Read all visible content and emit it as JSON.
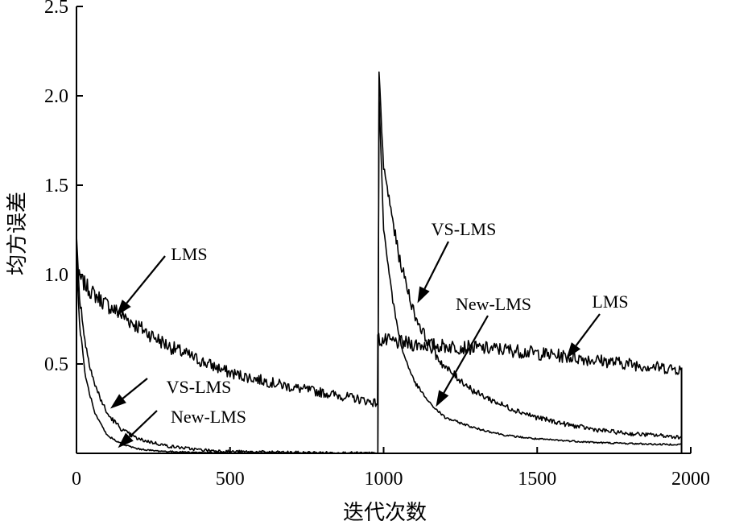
{
  "chart_data": {
    "type": "line",
    "title": "",
    "xlabel": "迭代次数",
    "ylabel": "均方误差",
    "xlim": [
      0,
      2000
    ],
    "ylim": [
      0,
      2.5
    ],
    "x_ticks": [
      0,
      500,
      1000,
      1500,
      2000
    ],
    "x_tick_labels": [
      "0",
      "500",
      "1000",
      "1500",
      "2000"
    ],
    "y_ticks": [
      0.5,
      1.0,
      1.5,
      2.0,
      2.5
    ],
    "y_tick_labels": [
      "0.5",
      "1.0",
      "1.5",
      "2.0",
      "2.5"
    ],
    "grid": false,
    "legend": "none",
    "color": "#000000",
    "series": [
      {
        "key": "LMS",
        "x": [
          0,
          50,
          100,
          150,
          200,
          300,
          400,
          500,
          600,
          700,
          800,
          900,
          980,
          981,
          1000,
          1100,
          1200,
          1300,
          1400,
          1500,
          1600,
          1700,
          1800,
          1900,
          1970
        ],
        "y": [
          1.0,
          0.9,
          0.83,
          0.77,
          0.71,
          0.6,
          0.52,
          0.45,
          0.41,
          0.37,
          0.34,
          0.31,
          0.28,
          0.64,
          0.63,
          0.61,
          0.6,
          0.59,
          0.58,
          0.56,
          0.54,
          0.52,
          0.5,
          0.48,
          0.47
        ]
      },
      {
        "key": "VS-LMS",
        "x": [
          0,
          10,
          30,
          60,
          100,
          150,
          200,
          300,
          400,
          500,
          700,
          980,
          981,
          985,
          1000,
          1050,
          1100,
          1150,
          1200,
          1300,
          1400,
          1500,
          1600,
          1700,
          1800,
          1900,
          1970
        ],
        "y": [
          1.2,
          0.88,
          0.6,
          0.38,
          0.22,
          0.13,
          0.08,
          0.04,
          0.02,
          0.01,
          0.005,
          0.0,
          0.0,
          2.12,
          1.6,
          1.1,
          0.78,
          0.6,
          0.48,
          0.34,
          0.26,
          0.2,
          0.16,
          0.13,
          0.11,
          0.1,
          0.09
        ]
      },
      {
        "key": "New-LMS",
        "x": [
          0,
          10,
          30,
          60,
          100,
          150,
          200,
          250,
          300,
          400,
          500,
          980,
          981,
          985,
          1000,
          1030,
          1060,
          1100,
          1150,
          1200,
          1300,
          1400,
          1500,
          1600,
          1700,
          1800,
          1900,
          1970
        ],
        "y": [
          1.1,
          0.72,
          0.42,
          0.22,
          0.1,
          0.05,
          0.025,
          0.015,
          0.01,
          0.005,
          0.002,
          0.0,
          0.0,
          2.02,
          1.25,
          0.85,
          0.58,
          0.4,
          0.28,
          0.2,
          0.14,
          0.1,
          0.08,
          0.07,
          0.06,
          0.055,
          0.05,
          0.05
        ]
      }
    ],
    "annotations": [
      {
        "key": "a1",
        "text": "LMS",
        "target": [
          130,
          0.77
        ]
      },
      {
        "key": "a2",
        "text": "VS-LMS",
        "target": [
          110,
          0.25
        ]
      },
      {
        "key": "a3",
        "text": "New-LMS",
        "target": [
          135,
          0.03
        ]
      },
      {
        "key": "a4",
        "text": "VS-LMS",
        "target": [
          1110,
          0.84
        ]
      },
      {
        "key": "a5",
        "text": "New-LMS",
        "target": [
          1170,
          0.26
        ]
      },
      {
        "key": "a6",
        "text": "LMS",
        "target": [
          1595,
          0.53
        ]
      }
    ]
  }
}
